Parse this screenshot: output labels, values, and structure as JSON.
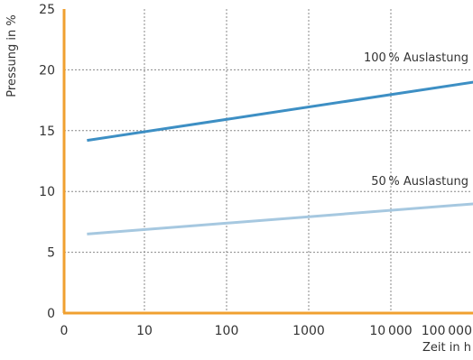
{
  "chart_data": {
    "type": "line",
    "xlabel": "Zeit in h",
    "ylabel": "Pressung in %",
    "x_scale": "log",
    "x_ticks": [
      "0",
      "10",
      "100",
      "1000",
      "10 000",
      "100 000"
    ],
    "y_ticks": [
      "0",
      "5",
      "10",
      "15",
      "20",
      "25"
    ],
    "ylim": [
      0,
      25
    ],
    "grid": true,
    "series": [
      {
        "name": "100 % Auslastung",
        "color": "#3d8fc4",
        "points": [
          [
            2,
            14.2
          ],
          [
            1000000,
            20.0
          ]
        ]
      },
      {
        "name": "50 % Auslastung",
        "color": "#a6c8e0",
        "points": [
          [
            2,
            6.5
          ],
          [
            1000000,
            9.5
          ]
        ]
      }
    ],
    "axis_color": "#f0a030",
    "grid_color": "#888888"
  }
}
